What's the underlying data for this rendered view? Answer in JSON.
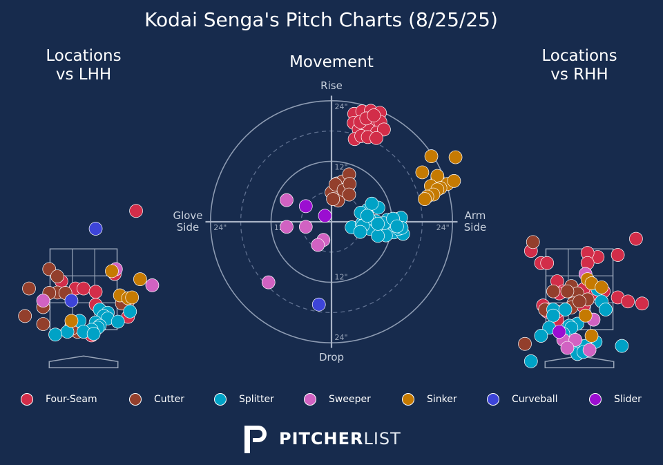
{
  "title": "Kodai Senga's Pitch Charts (8/25/25)",
  "panels": {
    "lhh_title": [
      "Locations",
      "vs LHH"
    ],
    "movement_title": "Movement",
    "rhh_title": [
      "Locations",
      "vs RHH"
    ]
  },
  "movement_axes": {
    "top": "Rise",
    "bottom": "Drop",
    "left": [
      "Glove",
      "Side"
    ],
    "right": [
      "Arm",
      "Side"
    ]
  },
  "brand": {
    "strong": "PITCHER",
    "light": "LIST"
  },
  "colors": {
    "background": "#172b4d",
    "Four-Seam": "#d22d49",
    "Cutter": "#933f2c",
    "Splitter": "#00a2c6",
    "Sweeper": "#d162c2",
    "Sinker": "#c57a02",
    "Curveball": "#3d44d8",
    "Slider": "#9b0ed1"
  },
  "legend": [
    {
      "label": "Four-Seam",
      "color": "#d22d49"
    },
    {
      "label": "Cutter",
      "color": "#933f2c"
    },
    {
      "label": "Splitter",
      "color": "#00a2c6"
    },
    {
      "label": "Sweeper",
      "color": "#d162c2"
    },
    {
      "label": "Sinker",
      "color": "#c57a02"
    },
    {
      "label": "Curveball",
      "color": "#3d44d8"
    },
    {
      "label": "Slider",
      "color": "#9b0ed1"
    }
  ],
  "chart_data": [
    {
      "type": "scatter",
      "title": "Locations vs LHH",
      "xlim": [
        -2.0,
        2.0
      ],
      "ylim": [
        0.0,
        5.0
      ],
      "series": [
        {
          "name": "Four-Seam",
          "points": [
            [
              1.3,
              4.44
            ],
            [
              0.77,
              2.88
            ],
            [
              -0.55,
              2.7
            ],
            [
              -0.2,
              2.52
            ],
            [
              0.0,
              2.52
            ],
            [
              0.3,
              2.44
            ],
            [
              0.3,
              2.12
            ],
            [
              1.1,
              1.82
            ],
            [
              0.2,
              1.36
            ]
          ]
        },
        {
          "name": "Cutter",
          "points": [
            [
              -1.35,
              2.52
            ],
            [
              -0.85,
              3.0
            ],
            [
              -0.65,
              2.82
            ],
            [
              -0.65,
              2.42
            ],
            [
              -0.45,
              2.41
            ],
            [
              -0.85,
              2.41
            ],
            [
              -1.0,
              2.06
            ],
            [
              -1.45,
              1.84
            ],
            [
              -1.0,
              1.64
            ],
            [
              -0.3,
              1.6
            ],
            [
              -0.2,
              1.5
            ],
            [
              -0.15,
              1.45
            ],
            [
              -0.3,
              1.55
            ],
            [
              1.0,
              2.25
            ],
            [
              1.1,
              2.2
            ],
            [
              0.95,
              2.15
            ],
            [
              -0.3,
              1.52
            ]
          ]
        },
        {
          "name": "Splitter",
          "points": [
            [
              0.4,
              2.0
            ],
            [
              0.6,
              1.92
            ],
            [
              0.5,
              1.84
            ],
            [
              0.6,
              1.78
            ],
            [
              0.85,
              1.7
            ],
            [
              -0.1,
              1.72
            ],
            [
              0.3,
              1.68
            ],
            [
              0.4,
              1.6
            ],
            [
              0.35,
              1.55
            ],
            [
              0.2,
              1.5
            ],
            [
              -0.4,
              1.45
            ],
            [
              0.0,
              1.45
            ],
            [
              -0.7,
              1.38
            ],
            [
              0.25,
              1.4
            ],
            [
              1.15,
              1.95
            ]
          ]
        },
        {
          "name": "Sweeper",
          "points": [
            [
              0.8,
              3.0
            ],
            [
              1.7,
              2.6
            ],
            [
              -1.0,
              2.22
            ]
          ]
        },
        {
          "name": "Sinker",
          "points": [
            [
              0.7,
              2.95
            ],
            [
              1.4,
              2.75
            ],
            [
              0.9,
              2.35
            ],
            [
              1.1,
              2.28
            ],
            [
              1.2,
              2.3
            ],
            [
              -0.3,
              1.72
            ]
          ]
        },
        {
          "name": "Curveball",
          "points": [
            [
              0.3,
              4.0
            ],
            [
              -0.3,
              2.22
            ]
          ]
        },
        {
          "name": "Slider",
          "points": []
        }
      ]
    },
    {
      "type": "scatter",
      "title": "Movement",
      "xlim": [
        -30,
        30
      ],
      "ylim": [
        -30,
        30
      ],
      "rings_inches": [
        6,
        12,
        18,
        24
      ],
      "tick_labels": [
        "24\"",
        "12\"",
        "12\"",
        "24\"",
        "24\"",
        "12\"",
        "12\"",
        "24\""
      ],
      "xlabels": [
        "Glove Side",
        "Arm Side"
      ],
      "ylabels": [
        "Rise",
        "Drop"
      ],
      "series": [
        {
          "name": "Four-Seam",
          "points": [
            [
              4.5,
              21.4
            ],
            [
              6.1,
              21.9
            ],
            [
              7.8,
              22.0
            ],
            [
              9.6,
              21.6
            ],
            [
              4.4,
              19.6
            ],
            [
              6.2,
              19.8
            ],
            [
              8.0,
              20.1
            ],
            [
              9.7,
              19.8
            ],
            [
              5.4,
              18.3
            ],
            [
              7.3,
              18.3
            ],
            [
              9.0,
              17.7
            ],
            [
              10.4,
              18.3
            ],
            [
              4.6,
              16.4
            ],
            [
              5.9,
              17.0
            ],
            [
              7.2,
              16.8
            ],
            [
              8.9,
              16.6
            ],
            [
              5.7,
              19.8
            ],
            [
              6.9,
              20.5
            ],
            [
              8.4,
              21.1
            ]
          ]
        },
        {
          "name": "Cutter",
          "points": [
            [
              0.0,
              5.8
            ],
            [
              1.1,
              7.6
            ],
            [
              2.2,
              8.0
            ],
            [
              3.3,
              6.9
            ],
            [
              3.5,
              9.4
            ],
            [
              2.2,
              5.6
            ],
            [
              1.3,
              4.2
            ],
            [
              0.8,
              7.4
            ],
            [
              2.4,
              6.3
            ],
            [
              3.6,
              7.5
            ],
            [
              3.5,
              5.4
            ],
            [
              0.3,
              4.5
            ]
          ]
        },
        {
          "name": "Splitter",
          "points": [
            [
              7.2,
              2.4
            ],
            [
              9.3,
              2.8
            ],
            [
              8.0,
              3.6
            ],
            [
              4.0,
              -1.1
            ],
            [
              6.0,
              -0.4
            ],
            [
              7.6,
              -1.4
            ],
            [
              8.8,
              0.1
            ],
            [
              10.3,
              -1.2
            ],
            [
              11.1,
              0.4
            ],
            [
              10.8,
              -1.8
            ],
            [
              12.0,
              -1.0
            ],
            [
              13.6,
              0.4
            ],
            [
              6.8,
              0.7
            ],
            [
              12.4,
              -2.1
            ],
            [
              14.2,
              -2.4
            ],
            [
              13.3,
              -1.4
            ],
            [
              10.8,
              -2.7
            ],
            [
              9.2,
              -2.8
            ],
            [
              7.4,
              0.7
            ],
            [
              5.8,
              1.8
            ],
            [
              13.3,
              0.6
            ],
            [
              13.8,
              0.8
            ],
            [
              10.4,
              -0.3
            ],
            [
              13.9,
              -1.2
            ],
            [
              12.2,
              0.6
            ],
            [
              13.0,
              -0.9
            ],
            [
              9.2,
              -0.4
            ],
            [
              6.2,
              -0.8
            ],
            [
              7.1,
              1.2
            ],
            [
              5.7,
              -2.0
            ]
          ]
        },
        {
          "name": "Sweeper",
          "points": [
            [
              -8.9,
              4.3
            ],
            [
              -5.1,
              -1.0
            ],
            [
              -8.9,
              -1.0
            ],
            [
              -1.6,
              -3.6
            ],
            [
              -2.7,
              -4.6
            ],
            [
              -12.5,
              -12.0
            ]
          ]
        },
        {
          "name": "Sinker",
          "points": [
            [
              18.0,
              9.8
            ],
            [
              19.8,
              13.0
            ],
            [
              21.0,
              8.7
            ],
            [
              23.0,
              7.5
            ],
            [
              24.6,
              12.8
            ],
            [
              24.3,
              8.1
            ],
            [
              21.0,
              9.1
            ],
            [
              21.6,
              6.7
            ],
            [
              19.7,
              7.1
            ],
            [
              21.0,
              6.4
            ],
            [
              20.2,
              5.4
            ],
            [
              19.0,
              5.0
            ],
            [
              18.5,
              4.5
            ]
          ]
        },
        {
          "name": "Curveball",
          "points": [
            [
              -2.5,
              -16.4
            ]
          ]
        },
        {
          "name": "Slider",
          "points": [
            [
              -5.1,
              3.1
            ],
            [
              -1.3,
              1.2
            ]
          ]
        }
      ]
    },
    {
      "type": "scatter",
      "title": "Locations vs RHH",
      "xlim": [
        -2.0,
        2.0
      ],
      "ylim": [
        0.0,
        5.0
      ],
      "series": [
        {
          "name": "Four-Seam",
          "points": [
            [
              1.4,
              3.75
            ],
            [
              -1.2,
              3.45
            ],
            [
              0.45,
              3.3
            ],
            [
              0.2,
              3.4
            ],
            [
              -0.95,
              3.15
            ],
            [
              -0.8,
              3.15
            ],
            [
              0.2,
              3.15
            ],
            [
              0.95,
              3.35
            ],
            [
              -0.55,
              2.7
            ],
            [
              -0.15,
              2.5
            ],
            [
              0.1,
              2.5
            ],
            [
              0.6,
              2.45
            ],
            [
              -0.4,
              2.45
            ],
            [
              -0.5,
              2.4
            ],
            [
              0.4,
              2.4
            ],
            [
              0.95,
              2.3
            ],
            [
              1.2,
              2.2
            ],
            [
              1.55,
              2.15
            ],
            [
              -0.9,
              2.1
            ],
            [
              -0.8,
              2.0
            ],
            [
              0.1,
              2.08
            ],
            [
              -0.55,
              1.75
            ],
            [
              -0.55,
              1.95
            ],
            [
              -0.8,
              1.95
            ]
          ]
        },
        {
          "name": "Cutter",
          "points": [
            [
              -1.15,
              3.67
            ],
            [
              -0.65,
              2.45
            ],
            [
              -0.2,
              2.58
            ],
            [
              -0.05,
              2.4
            ],
            [
              -0.15,
              2.15
            ],
            [
              -0.2,
              2.05
            ],
            [
              -0.85,
              2.0
            ],
            [
              0.2,
              2.25
            ],
            [
              0.0,
              2.2
            ],
            [
              -0.3,
              2.45
            ],
            [
              -1.35,
              1.15
            ]
          ]
        },
        {
          "name": "Splitter",
          "points": [
            [
              -0.65,
              2.0
            ],
            [
              -0.35,
              2.0
            ],
            [
              0.45,
              2.5
            ],
            [
              0.55,
              2.2
            ],
            [
              0.65,
              2.0
            ],
            [
              -0.65,
              1.85
            ],
            [
              -0.75,
              1.55
            ],
            [
              -0.05,
              1.65
            ],
            [
              -0.25,
              1.6
            ],
            [
              -0.2,
              1.55
            ],
            [
              -0.4,
              1.4
            ],
            [
              -0.95,
              1.35
            ],
            [
              0.4,
              1.2
            ],
            [
              -0.05,
              1.15
            ],
            [
              0.15,
              1.1
            ],
            [
              -0.05,
              0.9
            ],
            [
              0.1,
              0.95
            ],
            [
              1.05,
              1.1
            ],
            [
              -1.2,
              0.72
            ]
          ]
        },
        {
          "name": "Sweeper",
          "points": [
            [
              0.15,
              2.88
            ],
            [
              0.35,
              1.75
            ],
            [
              -0.4,
              1.25
            ],
            [
              -0.1,
              1.25
            ],
            [
              -0.3,
              1.05
            ],
            [
              0.25,
              1.0
            ]
          ]
        },
        {
          "name": "Sinker",
          "points": [
            [
              0.2,
              2.75
            ],
            [
              0.3,
              2.65
            ],
            [
              0.55,
              2.55
            ],
            [
              0.15,
              1.85
            ],
            [
              0.3,
              1.35
            ]
          ]
        },
        {
          "name": "Curveball",
          "points": []
        },
        {
          "name": "Slider",
          "points": [
            [
              -0.5,
              1.45
            ]
          ]
        }
      ]
    }
  ]
}
